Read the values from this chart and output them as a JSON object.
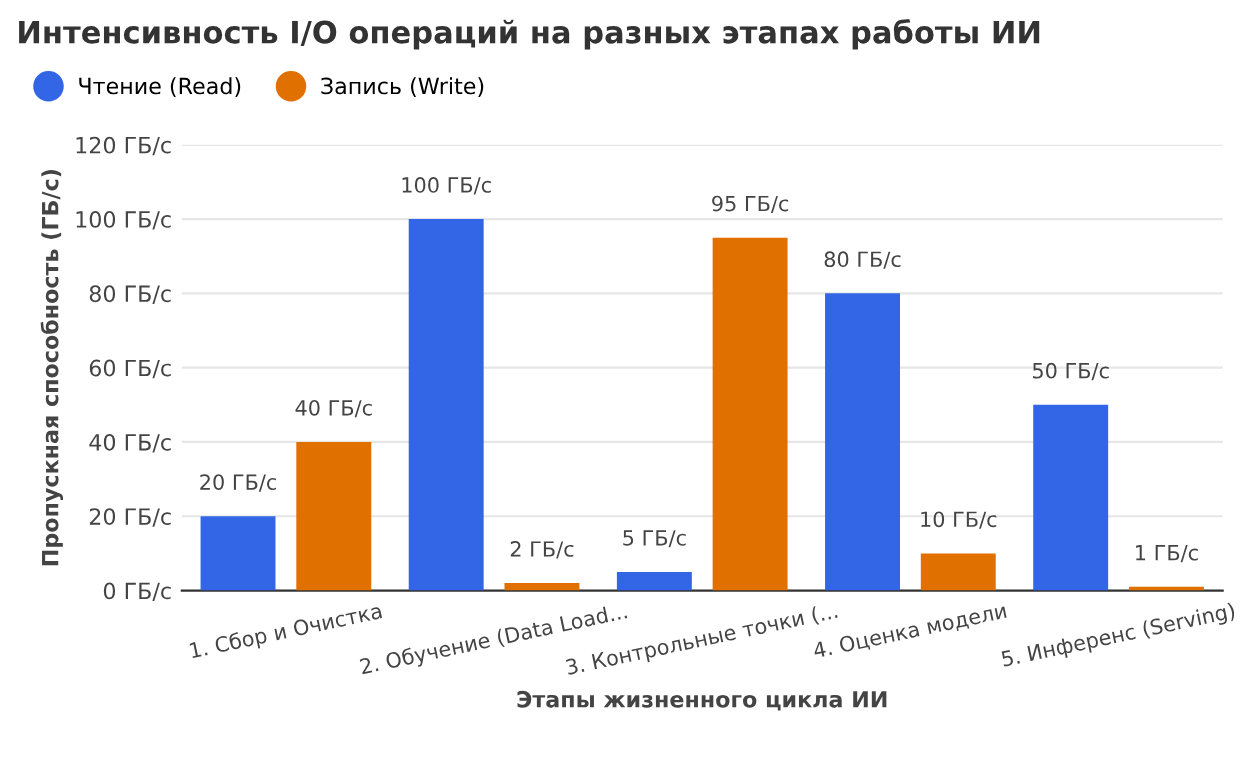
{
  "chart_data": {
    "type": "bar",
    "title": "Интенсивность I/O операций на разных этапах работы ИИ",
    "xlabel": "Этапы жизненного цикла ИИ",
    "ylabel": "Пропускная способность (ГБ/с)",
    "categories": [
      "1. Сбор и Очистка",
      "2. Обучение (Data Load...",
      "3. Контрольные точки (...",
      "4. Оценка модели",
      "5. Инференс (Serving)"
    ],
    "series": [
      {
        "name": "Чтение (Read)",
        "color": "#3366e6",
        "values": [
          20,
          100,
          5,
          80,
          50
        ],
        "value_labels": [
          "20 ГБ/с",
          "100 ГБ/с",
          "5 ГБ/с",
          "80 ГБ/с",
          "50 ГБ/с"
        ]
      },
      {
        "name": "Запись (Write)",
        "color": "#e07000",
        "values": [
          40,
          2,
          95,
          10,
          1
        ],
        "value_labels": [
          "40 ГБ/с",
          "2 ГБ/с",
          "95 ГБ/с",
          "10 ГБ/с",
          "1 ГБ/с"
        ]
      }
    ],
    "ylim": [
      0,
      120
    ],
    "yticks": [
      {
        "value": 0,
        "label": "0 ГБ/с"
      },
      {
        "value": 20,
        "label": "20 ГБ/с"
      },
      {
        "value": 40,
        "label": "40 ГБ/с"
      },
      {
        "value": 60,
        "label": "60 ГБ/с"
      },
      {
        "value": 80,
        "label": "80 ГБ/с"
      },
      {
        "value": 100,
        "label": "100 ГБ/с"
      },
      {
        "value": 120,
        "label": "120 ГБ/с"
      }
    ],
    "grid": "y",
    "legend": "top left"
  }
}
